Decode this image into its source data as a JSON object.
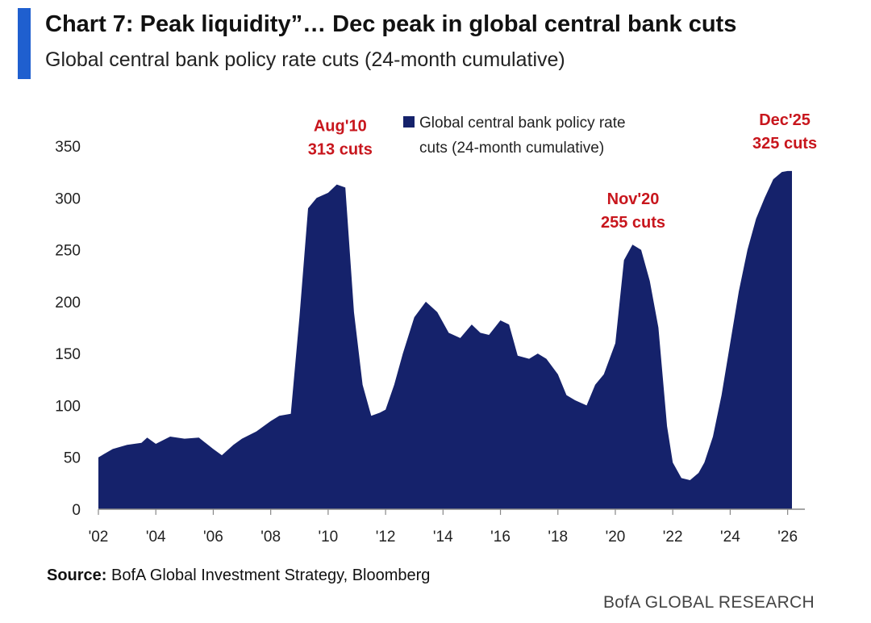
{
  "header": {
    "title": "Chart 7: Peak liquidity”… Dec peak in global central bank cuts",
    "subtitle": "Global central bank policy rate cuts (24-month cumulative)"
  },
  "colors": {
    "accent": "#1f5fcf",
    "series": "#15226b",
    "annotation": "#c8161d"
  },
  "footer": {
    "source_label": "Source:",
    "source_text": "BofA Global Investment Strategy, Bloomberg",
    "brand": "BofA GLOBAL RESEARCH"
  },
  "chart_data": {
    "type": "area",
    "title": "",
    "xlabel": "",
    "ylabel": "",
    "xlim": [
      2002,
      2026.6
    ],
    "ylim": [
      0,
      350
    ],
    "yticks": [
      0,
      50,
      100,
      150,
      200,
      250,
      300,
      350
    ],
    "xticks": [
      {
        "value": 2002,
        "label": "'02"
      },
      {
        "value": 2004,
        "label": "'04"
      },
      {
        "value": 2006,
        "label": "'06"
      },
      {
        "value": 2008,
        "label": "'08"
      },
      {
        "value": 2010,
        "label": "'10"
      },
      {
        "value": 2012,
        "label": "'12"
      },
      {
        "value": 2014,
        "label": "'14"
      },
      {
        "value": 2016,
        "label": "'16"
      },
      {
        "value": 2018,
        "label": "'18"
      },
      {
        "value": 2020,
        "label": "'20"
      },
      {
        "value": 2022,
        "label": "'22"
      },
      {
        "value": 2024,
        "label": "'24"
      },
      {
        "value": 2026,
        "label": "'26"
      }
    ],
    "grid": false,
    "legend": {
      "position": "top-center",
      "entries": [
        "Global central bank policy rate cuts (24-month cumulative)"
      ]
    },
    "series": [
      {
        "name": "Global central bank policy rate cuts (24-month cumulative)",
        "x": [
          2002.0,
          2002.5,
          2003.0,
          2003.5,
          2003.7,
          2004.0,
          2004.5,
          2005.0,
          2005.5,
          2006.0,
          2006.3,
          2006.7,
          2007.0,
          2007.5,
          2008.0,
          2008.3,
          2008.7,
          2009.0,
          2009.3,
          2009.6,
          2010.0,
          2010.3,
          2010.6,
          2010.9,
          2011.2,
          2011.5,
          2011.8,
          2012.0,
          2012.3,
          2012.6,
          2013.0,
          2013.4,
          2013.8,
          2014.2,
          2014.6,
          2015.0,
          2015.3,
          2015.6,
          2016.0,
          2016.3,
          2016.6,
          2017.0,
          2017.3,
          2017.6,
          2018.0,
          2018.3,
          2018.6,
          2019.0,
          2019.3,
          2019.6,
          2020.0,
          2020.3,
          2020.6,
          2020.9,
          2021.2,
          2021.5,
          2021.8,
          2022.0,
          2022.3,
          2022.6,
          2022.9,
          2023.1,
          2023.4,
          2023.7,
          2024.0,
          2024.3,
          2024.6,
          2024.9,
          2025.2,
          2025.5,
          2025.8,
          2026.0,
          2026.15
        ],
        "values": [
          50,
          58,
          62,
          64,
          69,
          63,
          70,
          68,
          69,
          58,
          52,
          62,
          68,
          75,
          85,
          90,
          92,
          185,
          290,
          300,
          305,
          313,
          310,
          190,
          120,
          90,
          93,
          96,
          120,
          150,
          185,
          200,
          190,
          170,
          165,
          178,
          170,
          168,
          182,
          178,
          148,
          145,
          150,
          145,
          130,
          110,
          105,
          100,
          120,
          130,
          160,
          240,
          255,
          250,
          220,
          175,
          80,
          45,
          30,
          28,
          35,
          45,
          70,
          110,
          160,
          210,
          250,
          280,
          300,
          318,
          325,
          326,
          326
        ]
      }
    ],
    "annotations": [
      {
        "x": 2010.7,
        "y": 313,
        "lines": [
          "Aug'10",
          "313 cuts"
        ]
      },
      {
        "x": 2020.9,
        "y": 255,
        "lines": [
          "Nov'20",
          "255 cuts"
        ]
      },
      {
        "x": 2025.9,
        "y": 325,
        "lines": [
          "Dec'25",
          "325 cuts"
        ]
      }
    ]
  }
}
